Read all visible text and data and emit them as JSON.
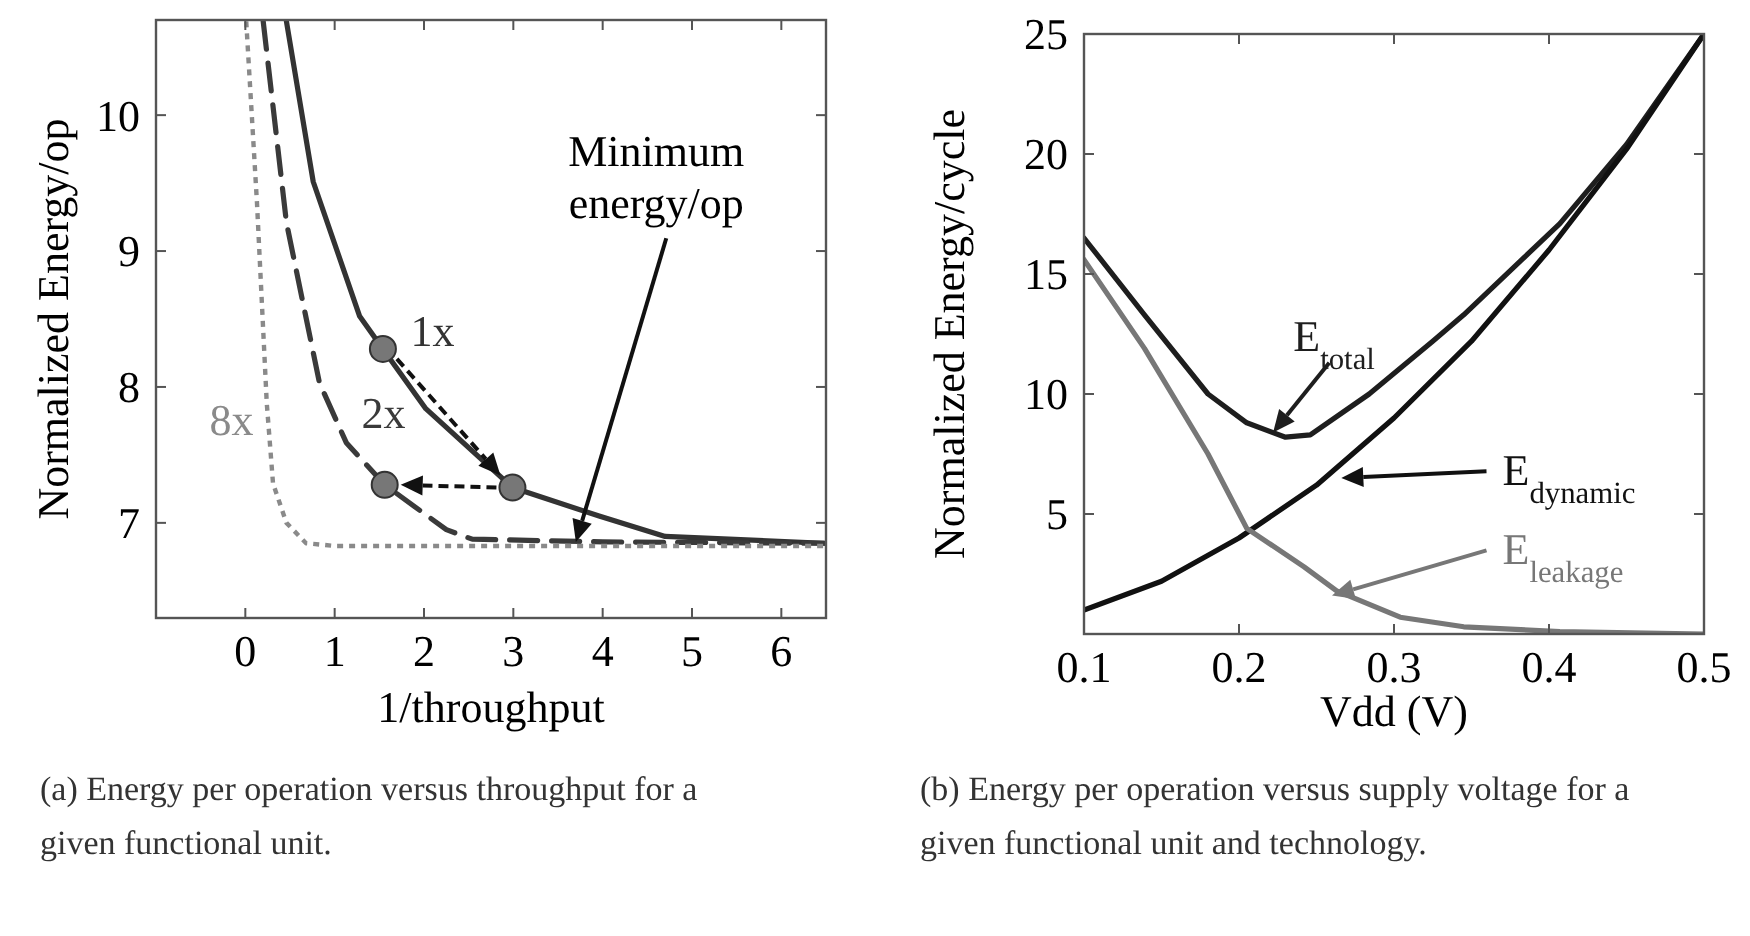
{
  "chart_data": [
    {
      "type": "line",
      "xlabel": "1/throughput",
      "ylabel": "Normalized Energy/op",
      "xlim": [
        -1,
        6.5
      ],
      "ylim": [
        6.3,
        10.7
      ],
      "xticks": [
        0,
        1,
        2,
        3,
        4,
        5,
        6
      ],
      "yticks": [
        7,
        8,
        9,
        10
      ],
      "grid": false,
      "marker": "none",
      "series": [
        {
          "name": "1x",
          "color": "#333333",
          "line_style": "solid",
          "x": [
            0.46,
            0.76,
            1.28,
            1.54,
            2.02,
            2.99,
            3.96,
            4.7,
            6.48
          ],
          "values": [
            10.69,
            9.51,
            8.52,
            8.28,
            7.84,
            7.26,
            7.05,
            6.9,
            6.85
          ]
        },
        {
          "name": "2x",
          "color": "#3a3a3a",
          "line_style": "dashed",
          "x": [
            0.2,
            0.46,
            0.83,
            1.13,
            1.56,
            2.25,
            2.54,
            4,
            6.48
          ],
          "values": [
            10.69,
            9.21,
            8.03,
            7.59,
            7.28,
            6.95,
            6.88,
            6.86,
            6.85
          ]
        },
        {
          "name": "8x",
          "color": "#8a8a8a",
          "line_style": "dotted",
          "x": [
            0.01,
            0.13,
            0.24,
            0.31,
            0.46,
            0.68,
            1,
            3,
            6.48
          ],
          "values": [
            10.69,
            9.36,
            7.88,
            7.29,
            7,
            6.85,
            6.83,
            6.83,
            6.83
          ]
        },
        {
          "type": "scatter",
          "marker": "circle",
          "color": "#777777",
          "x": [
            1.54,
            2.99,
            1.56
          ],
          "values": [
            8.28,
            7.26,
            7.28
          ]
        }
      ],
      "annotations": [
        "Minimum energy/op",
        "(a) Energy per operation versus throughput for a given functional unit."
      ]
    },
    {
      "type": "line",
      "xlabel": "Vdd (V)",
      "ylabel": "Normalized Energy/cycle",
      "xlim": [
        0.1,
        0.5
      ],
      "ylim": [
        0,
        25
      ],
      "xticks": [
        0.1,
        0.2,
        0.3,
        0.4,
        0.5
      ],
      "yticks": [
        5,
        10,
        15,
        20,
        25
      ],
      "grid": false,
      "legend": "right",
      "marker": "none",
      "series": [
        {
          "name": "E$_{total}$",
          "color": "#1e1e1e",
          "line_style": "solid",
          "x": [
            0.1,
            0.139,
            0.18,
            0.205,
            0.23,
            0.246,
            0.284,
            0.325,
            0.345,
            0.407,
            0.45,
            0.5
          ],
          "values": [
            16.5,
            13.3,
            10,
            8.8,
            8.2,
            8.3,
            10,
            12.2,
            13.3,
            17.1,
            20.4,
            25
          ]
        },
        {
          "name": "E$_{dynamic}$",
          "color": "#111111",
          "line_style": "solid",
          "x": [
            0.1,
            0.15,
            0.2,
            0.25,
            0.3,
            0.35,
            0.4,
            0.45,
            0.5
          ],
          "values": [
            1,
            2.2,
            4,
            6.2,
            9,
            12.2,
            16,
            20.2,
            25
          ]
        },
        {
          "name": "E$_{leakage}$",
          "color": "#777777",
          "line_style": "solid",
          "x": [
            0.1,
            0.139,
            0.18,
            0.205,
            0.242,
            0.263,
            0.304,
            0.345,
            0.407,
            0.5
          ],
          "values": [
            15.6,
            11.9,
            7.5,
            4.4,
            2.8,
            1.8,
            0.7,
            0.3,
            0.1,
            0
          ]
        }
      ],
      "annotations": [
        "(b) Energy per operation versus supply voltage for a given functional unit and technology."
      ]
    }
  ]
}
